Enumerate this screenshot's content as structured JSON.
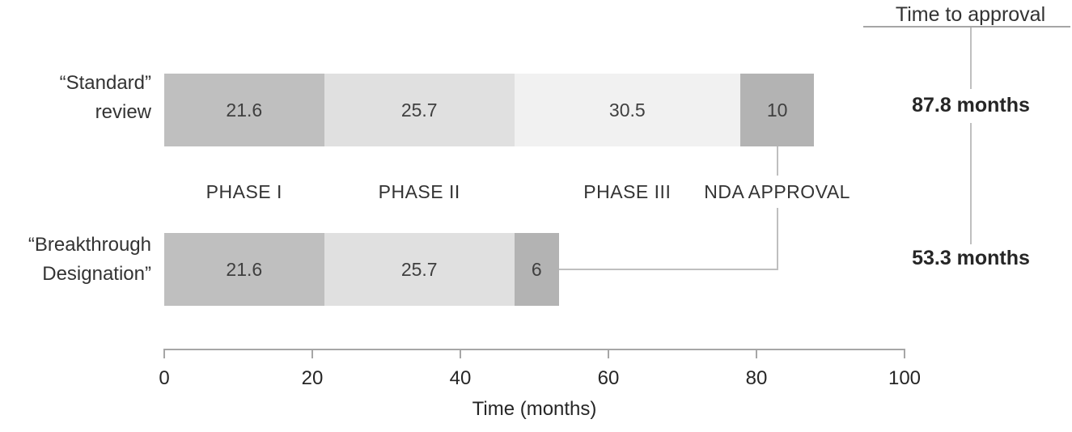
{
  "title": "Time to approval",
  "totals": [
    {
      "text": "87.8 months"
    },
    {
      "text": "53.3 months"
    }
  ],
  "bars": [
    {
      "label_lines": [
        "“Standard”",
        "review"
      ],
      "segments": [
        {
          "label": "21.6",
          "months": 21.6,
          "color": "#bfbfbf"
        },
        {
          "label": "25.7",
          "months": 25.7,
          "color": "#e0e0e0"
        },
        {
          "label": "30.5",
          "months": 30.5,
          "color": "#f1f1f1"
        },
        {
          "label": "10",
          "months": 10,
          "color": "#b3b3b3"
        }
      ]
    },
    {
      "label_lines": [
        "“Breakthrough",
        "Designation”"
      ],
      "segments": [
        {
          "label": "21.6",
          "months": 21.6,
          "color": "#bfbfbf"
        },
        {
          "label": "25.7",
          "months": 25.7,
          "color": "#e0e0e0"
        },
        {
          "label": "6",
          "months": 6,
          "color": "#b3b3b3"
        }
      ]
    }
  ],
  "phase_labels": [
    "PHASE I",
    "PHASE II",
    "PHASE III",
    "NDA APPROVAL"
  ],
  "axis": {
    "ticks": [
      0,
      20,
      40,
      60,
      80,
      100
    ],
    "label": "Time (months)"
  },
  "colors": {
    "segment_dark": "#b3b3b3",
    "segment_medium": "#bfbfbf",
    "segment_light": "#e0e0e0",
    "segment_lighter": "#f1f1f1",
    "axis_line": "#a6a6a6",
    "connector": "#bfbfbf",
    "text": "#262626"
  },
  "chart_data": {
    "type": "bar",
    "orientation": "horizontal",
    "stacked": true,
    "title": "Time to approval",
    "xlabel": "Time (months)",
    "xlim": [
      0,
      100
    ],
    "xticks": [
      0,
      20,
      40,
      60,
      80,
      100
    ],
    "grid": false,
    "categories": [
      "“Standard” review",
      "“Breakthrough Designation”"
    ],
    "stages": [
      "PHASE I",
      "PHASE II",
      "PHASE III",
      "NDA APPROVAL"
    ],
    "series": [
      {
        "name": "PHASE I",
        "values": [
          21.6,
          21.6
        ]
      },
      {
        "name": "PHASE II",
        "values": [
          25.7,
          25.7
        ]
      },
      {
        "name": "PHASE III",
        "values": [
          30.5,
          0
        ]
      },
      {
        "name": "NDA APPROVAL",
        "values": [
          10,
          6
        ]
      }
    ],
    "totals_months": [
      87.8,
      53.3
    ],
    "total_labels": [
      "87.8 months",
      "53.3 months"
    ],
    "annotation_header": "Time to approval"
  }
}
